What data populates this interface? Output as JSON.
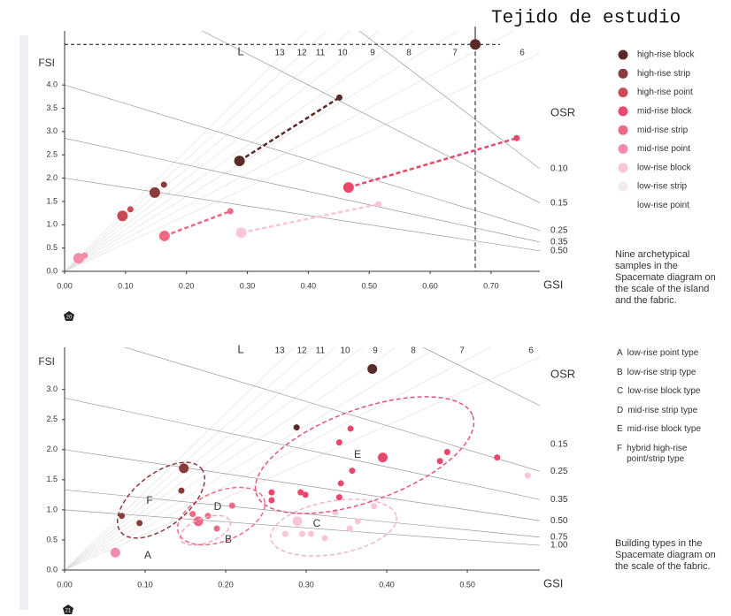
{
  "chart_data": [
    {
      "type": "scatter",
      "x_label": "GSI",
      "y_label": "FSI",
      "l_label": "L",
      "osr_label": "OSR",
      "xlim": [
        0,
        0.78
      ],
      "ylim": [
        0,
        5.16
      ],
      "xticks": [
        {
          "value": 0,
          "label": "0.00"
        },
        {
          "value": 0.1,
          "label": "0.10"
        },
        {
          "value": 0.2,
          "label": "0.20"
        },
        {
          "value": 0.3,
          "label": "0.30"
        },
        {
          "value": 0.4,
          "label": "0.40"
        },
        {
          "value": 0.5,
          "label": "0.50"
        },
        {
          "value": 0.6,
          "label": "0.60"
        },
        {
          "value": 0.7,
          "label": "0.70"
        }
      ],
      "yticks": [
        {
          "value": 0,
          "label": "0.0"
        },
        0.5,
        {
          "value": 1,
          "label": "1.0"
        },
        1.5,
        {
          "value": 2,
          "label": "2.0"
        },
        2.5,
        {
          "value": 3,
          "label": "3.0"
        },
        3.5,
        {
          "value": 4,
          "label": "4.0"
        }
      ],
      "l_lines": [
        13,
        12,
        11,
        10,
        9,
        8,
        7,
        6
      ],
      "osr_lines": [
        {
          "value": 0.1,
          "label": "0.10"
        },
        0.15,
        0.25,
        0.35,
        {
          "value": 0.5,
          "label": "0.50"
        }
      ],
      "legend": "right",
      "annotation": {
        "text": "Tejido de estudio",
        "x": 0.674,
        "y": 4.87
      },
      "series": [
        {
          "name": "high-rise block",
          "color": "#5a2a27",
          "line": "dashed",
          "x": [
            0.287,
            0.451
          ],
          "values": [
            2.37,
            3.73
          ]
        },
        {
          "name": "high-rise strip",
          "color": "#8b3b3d",
          "x": [
            0.148,
            0.163
          ],
          "values": [
            1.69,
            1.86
          ]
        },
        {
          "name": "high-rise point",
          "color": "#c94a55",
          "x": [
            0.095,
            0.108
          ],
          "values": [
            1.19,
            1.33
          ]
        },
        {
          "name": "mid-rise block",
          "color": "#e9476b",
          "line": "dashed",
          "x": [
            0.466,
            0.742
          ],
          "values": [
            1.8,
            2.86
          ]
        },
        {
          "name": "mid-rise strip",
          "color": "#ef6884",
          "line": "dashed",
          "x": [
            0.164,
            0.272
          ],
          "values": [
            0.76,
            1.29
          ]
        },
        {
          "name": "mid-rise point",
          "color": "#f28ca8",
          "x": [
            0.023,
            0.033
          ],
          "values": [
            0.28,
            0.34
          ]
        },
        {
          "name": "low-rise block",
          "color": "#f8c6d6",
          "line": "dashed",
          "x": [
            0.29,
            0.515
          ],
          "values": [
            0.83,
            1.44
          ]
        },
        {
          "name": "low-rise strip",
          "color": "#f1ebee",
          "x": [],
          "values": []
        },
        {
          "name": "low-rise point",
          "color": "#ffffff",
          "x": [],
          "values": []
        }
      ],
      "caption": "Nine archetypical samples in the Spacemate diagram on the scale of the island and the fabric.",
      "page_mark": "20"
    },
    {
      "type": "scatter",
      "x_label": "GSI",
      "y_label": "FSI",
      "l_label": "L",
      "osr_label": "OSR",
      "xlim": [
        0,
        0.59
      ],
      "ylim": [
        0,
        3.7
      ],
      "xticks": [
        {
          "value": 0,
          "label": "0.00"
        },
        {
          "value": 0.1,
          "label": "0.10"
        },
        {
          "value": 0.2,
          "label": "0.20"
        },
        {
          "value": 0.3,
          "label": "0.30"
        },
        {
          "value": 0.4,
          "label": "0.40"
        },
        {
          "value": 0.5,
          "label": "0.50"
        }
      ],
      "yticks": [
        {
          "value": 0,
          "label": "0.0"
        },
        0.5,
        {
          "value": 1,
          "label": "1.0"
        },
        1.5,
        {
          "value": 2,
          "label": "2.0"
        },
        2.5,
        {
          "value": 3,
          "label": "3.0"
        }
      ],
      "l_lines": [
        13,
        12,
        11,
        10,
        9,
        8,
        7,
        6
      ],
      "osr_lines": [
        0.15,
        0.25,
        0.35,
        {
          "value": 0.5,
          "label": "0.50"
        },
        0.75,
        {
          "value": 1,
          "label": "1.00"
        }
      ],
      "series": [
        {
          "color": "#5a2a27",
          "x": [
            0.382,
            0.288
          ],
          "values": [
            3.34,
            2.37
          ]
        },
        {
          "color": "#8b3b3d",
          "x": [
            0.148,
            0.145,
            0.071,
            0.093
          ],
          "values": [
            1.69,
            1.32,
            0.9,
            0.78
          ]
        },
        {
          "color": "#e9476b",
          "x": [
            0.395,
            0.537,
            0.466,
            0.475,
            0.357,
            0.343,
            0.341,
            0.299,
            0.257,
            0.257,
            0.293,
            0.341,
            0.355
          ],
          "values": [
            1.87,
            1.87,
            1.81,
            1.96,
            1.65,
            1.44,
            1.21,
            1.25,
            1.29,
            1.16,
            1.29,
            2.12,
            2.35
          ]
        },
        {
          "color": "#ef6884",
          "x": [
            0.166,
            0.208,
            0.178,
            0.189,
            0.159
          ],
          "values": [
            0.81,
            1.07,
            0.9,
            0.69,
            0.93
          ]
        },
        {
          "color": "#f28ca8",
          "x": [
            0.063
          ],
          "values": [
            0.29
          ]
        },
        {
          "color": "#f8c6d6",
          "x": [
            0.289,
            0.295,
            0.306,
            0.336,
            0.364,
            0.384,
            0.274,
            0.323,
            0.354,
            0.575
          ],
          "values": [
            0.81,
            0.6,
            0.6,
            0.96,
            0.81,
            1.06,
            0.6,
            0.53,
            0.69,
            1.57
          ]
        }
      ],
      "groups": [
        {
          "letter": "A",
          "text": "low-rise point type"
        },
        {
          "letter": "B",
          "text": "low-rise strip type"
        },
        {
          "letter": "C",
          "text": "low-rise block type"
        },
        {
          "letter": "D",
          "text": "mid-rise strip type"
        },
        {
          "letter": "E",
          "text": "mid-rise block type"
        },
        {
          "letter": "F",
          "text": "hybrid high-rise point/strip type"
        }
      ],
      "caption": "Building types in the Spacemate diagram on the scale of the fabric.",
      "page_mark": "21"
    }
  ]
}
